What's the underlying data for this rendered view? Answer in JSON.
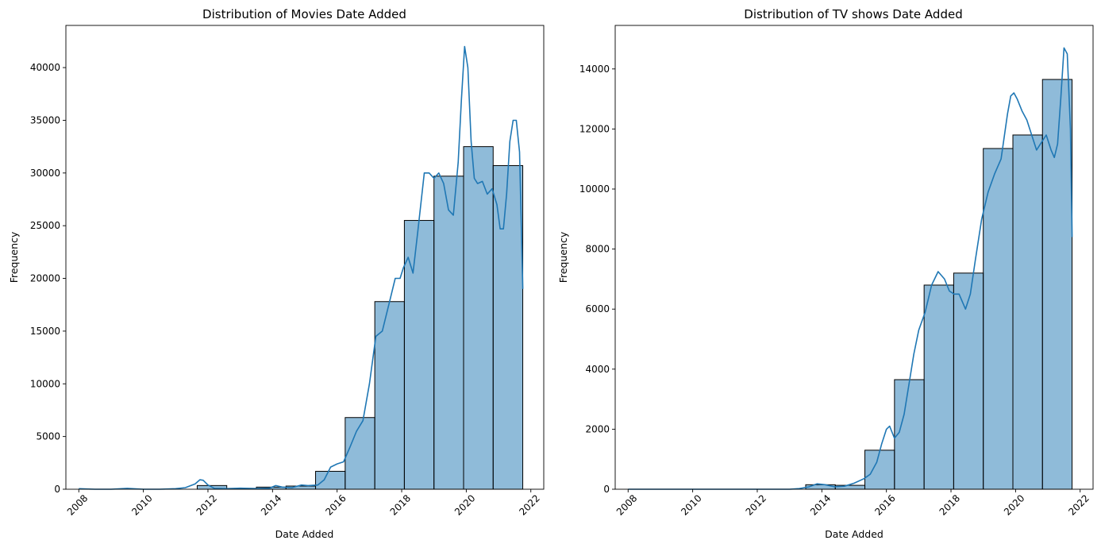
{
  "chart_data": [
    {
      "type": "bar",
      "title": "Distribution of Movies Date Added",
      "xlabel": "Date Added",
      "ylabel": "Frequency",
      "xlim": [
        2007.6,
        2022.4
      ],
      "ylim": [
        0,
        44000
      ],
      "xticks": [
        2008,
        2010,
        2012,
        2014,
        2016,
        2018,
        2020,
        2022
      ],
      "yticks": [
        0,
        5000,
        10000,
        15000,
        20000,
        25000,
        30000,
        35000,
        40000
      ],
      "bin_edges": [
        2008.0,
        2008.917,
        2009.833,
        2010.75,
        2011.667,
        2012.583,
        2013.5,
        2014.417,
        2015.333,
        2016.25,
        2017.167,
        2018.083,
        2019.0,
        2019.917,
        2020.833,
        2021.75
      ],
      "values": [
        0,
        0,
        0,
        0,
        350,
        80,
        200,
        300,
        1700,
        6800,
        17800,
        25500,
        29700,
        32500,
        30700
      ],
      "kde": {
        "x": [
          2008.0,
          2008.5,
          2009.0,
          2009.5,
          2010.0,
          2010.5,
          2011.0,
          2011.3,
          2011.6,
          2011.75,
          2011.85,
          2012.0,
          2012.2,
          2012.6,
          2013.0,
          2013.5,
          2013.9,
          2014.1,
          2014.3,
          2014.6,
          2014.9,
          2015.1,
          2015.4,
          2015.6,
          2015.8,
          2016.0,
          2016.2,
          2016.4,
          2016.6,
          2016.8,
          2017.0,
          2017.2,
          2017.4,
          2017.6,
          2017.8,
          2017.95,
          2018.05,
          2018.2,
          2018.35,
          2018.5,
          2018.7,
          2018.85,
          2019.0,
          2019.15,
          2019.3,
          2019.45,
          2019.6,
          2019.75,
          2019.85,
          2019.95,
          2020.05,
          2020.15,
          2020.25,
          2020.35,
          2020.5,
          2020.65,
          2020.8,
          2020.95,
          2021.05,
          2021.15,
          2021.25,
          2021.35,
          2021.45,
          2021.55,
          2021.65,
          2021.75
        ],
        "y": [
          50,
          0,
          0,
          80,
          0,
          0,
          50,
          150,
          500,
          900,
          850,
          400,
          80,
          50,
          100,
          60,
          100,
          350,
          200,
          150,
          400,
          350,
          400,
          900,
          2100,
          2400,
          2600,
          4000,
          5500,
          6500,
          10000,
          14500,
          15000,
          17500,
          20000,
          20000,
          21000,
          22000,
          20500,
          24500,
          30000,
          30000,
          29500,
          30000,
          29000,
          26500,
          26000,
          31000,
          37000,
          42000,
          40000,
          33000,
          29500,
          29000,
          29200,
          28000,
          28500,
          27000,
          24700,
          24700,
          28000,
          33000,
          35000,
          35000,
          32000,
          19000
        ]
      }
    },
    {
      "type": "bar",
      "title": "Distribution of TV shows Date Added",
      "xlabel": "Date Added",
      "ylabel": "Frequency",
      "xlim": [
        2007.6,
        2022.4
      ],
      "ylim": [
        0,
        15450
      ],
      "xticks": [
        2008,
        2010,
        2012,
        2014,
        2016,
        2018,
        2020,
        2022
      ],
      "yticks": [
        0,
        2000,
        4000,
        6000,
        8000,
        10000,
        12000,
        14000
      ],
      "bin_edges": [
        2008.0,
        2008.917,
        2009.833,
        2010.75,
        2011.667,
        2012.583,
        2013.5,
        2014.417,
        2015.333,
        2016.25,
        2017.167,
        2018.083,
        2019.0,
        2019.917,
        2020.833,
        2021.75
      ],
      "values": [
        0,
        0,
        0,
        0,
        0,
        0,
        150,
        130,
        1300,
        3650,
        6800,
        7200,
        11350,
        11800,
        13650
      ],
      "kde": {
        "x": [
          2008.0,
          2009.0,
          2010.0,
          2011.0,
          2012.0,
          2013.0,
          2013.3,
          2013.6,
          2013.85,
          2014.1,
          2014.4,
          2014.7,
          2015.0,
          2015.3,
          2015.5,
          2015.7,
          2015.85,
          2016.0,
          2016.1,
          2016.25,
          2016.4,
          2016.55,
          2016.7,
          2016.85,
          2017.0,
          2017.2,
          2017.4,
          2017.6,
          2017.8,
          2017.95,
          2018.1,
          2018.25,
          2018.45,
          2018.6,
          2018.75,
          2018.95,
          2019.15,
          2019.35,
          2019.55,
          2019.75,
          2019.85,
          2019.95,
          2020.05,
          2020.2,
          2020.35,
          2020.5,
          2020.65,
          2020.8,
          2020.95,
          2021.1,
          2021.2,
          2021.3,
          2021.4,
          2021.5,
          2021.6,
          2021.7,
          2021.75
        ],
        "y": [
          0,
          0,
          0,
          0,
          0,
          0,
          20,
          80,
          180,
          150,
          80,
          100,
          200,
          350,
          500,
          900,
          1500,
          2000,
          2100,
          1700,
          1900,
          2500,
          3500,
          4500,
          5300,
          5900,
          6800,
          7250,
          7000,
          6600,
          6500,
          6500,
          6000,
          6500,
          7600,
          9000,
          9900,
          10500,
          11000,
          12500,
          13100,
          13200,
          13000,
          12600,
          12300,
          11800,
          11300,
          11550,
          11800,
          11300,
          11050,
          11500,
          13000,
          14700,
          14500,
          12000,
          8400
        ]
      }
    }
  ]
}
